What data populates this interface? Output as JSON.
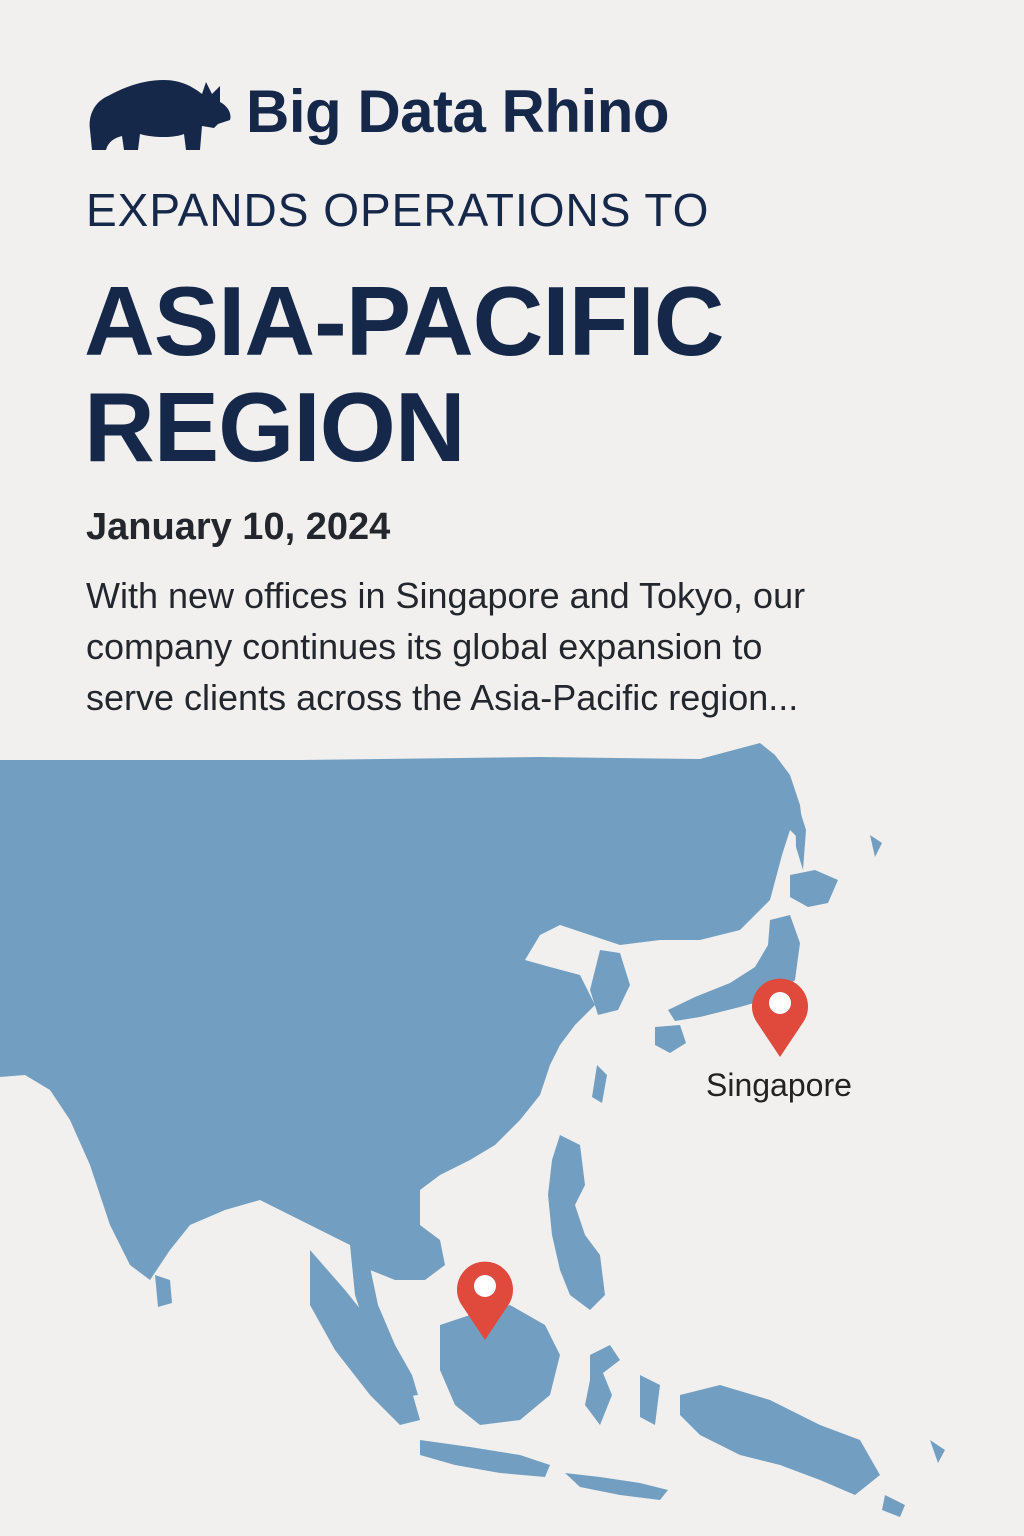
{
  "brand": {
    "name": "Big Data Rhino",
    "logo_icon": "rhino-logo-icon",
    "color": "#15284a"
  },
  "headline": {
    "kicker": "EXPANDS OPERATIONS TO",
    "line1": "ASIA-PACIFIC",
    "line2": "REGION"
  },
  "date": "January 10, 2024",
  "body": {
    "line1": "With new offices in Singapore and Tokyo, our",
    "line2": "company continues its global expansion to",
    "line3": "serve clients across the Asia-Pacific region..."
  },
  "map": {
    "land_color": "#729fc1",
    "pin_color": "#e04a3d",
    "markers": [
      {
        "icon": "map-pin-icon",
        "label": "Singapore"
      },
      {
        "icon": "map-pin-icon",
        "label": ""
      }
    ]
  }
}
